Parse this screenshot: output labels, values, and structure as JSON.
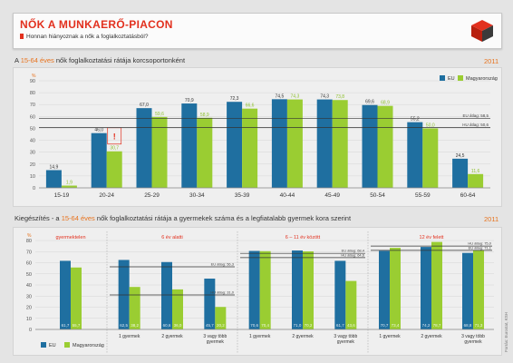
{
  "header": {
    "title": "NŐK A MUNKAERŐ-PIACON",
    "subtitle": "Honnan hiányoznak a nők a foglalkoztatásból?"
  },
  "section1": {
    "title_pre": "A ",
    "title_hl": "15-64 éves",
    "title_post": " nők foglalkoztatási rátája korcsoportonként",
    "year": "2011"
  },
  "section2": {
    "title_pre": "Kiegészítés - a ",
    "title_hl": "15-64 éves",
    "title_post": " nők foglalkoztatási rátája a gyermekek száma és a legfiatalabb gyermek kora szerint",
    "year": "2011"
  },
  "source": "Forrás: Eurostat, KSH",
  "colors": {
    "eu": "#1f6fa0",
    "hu": "#9acd32",
    "accent": "#e2301e",
    "orange": "#e8731e"
  },
  "chart_data": [
    {
      "type": "bar",
      "unit": "%",
      "categories": [
        "15-19",
        "20-24",
        "25-29",
        "30-34",
        "35-39",
        "40-44",
        "45-49",
        "50-54",
        "55-59",
        "60-64"
      ],
      "series": [
        {
          "name": "EU",
          "values": [
            14.9,
            46.0,
            67.0,
            70.9,
            72.3,
            74.5,
            74.3,
            69.6,
            55.2,
            24.5
          ]
        },
        {
          "name": "Magyarország",
          "values": [
            1.9,
            30.7,
            59.6,
            58.9,
            66.6,
            74.3,
            73.8,
            68.9,
            50.0,
            11.6
          ]
        }
      ],
      "ylim": [
        0,
        90
      ],
      "yticks": [
        0,
        10,
        20,
        30,
        40,
        50,
        60,
        70,
        80,
        90
      ],
      "reference_lines": [
        {
          "label": "EU átlag: 58,5",
          "value": 58.5
        },
        {
          "label": "HU átlag: 50,6",
          "value": 50.6
        }
      ],
      "annotations": [
        {
          "category": "20-24",
          "text": "!"
        }
      ],
      "legend": "top-right"
    },
    {
      "type": "bar",
      "unit": "%",
      "ylim": [
        0,
        80
      ],
      "yticks": [
        0,
        10,
        20,
        30,
        40,
        50,
        60,
        70,
        80
      ],
      "legend": "bottom-left",
      "series_names": [
        "EU",
        "Magyarország"
      ],
      "groups": [
        {
          "title": "gyermektelen",
          "categories": [
            ""
          ],
          "eu": [
            61.7
          ],
          "hu": [
            55.7
          ],
          "reference_lines": []
        },
        {
          "title": "6 év alatti",
          "categories": [
            "1 gyermek",
            "2 gyermek",
            "3 vagy több gyermek"
          ],
          "eu": [
            62.5,
            60.6,
            45.7
          ],
          "hu": [
            38.2,
            36.0,
            20.2
          ],
          "reference_lines": [
            {
              "label": "EU átlag: 56,3",
              "value": 56.3
            },
            {
              "label": "HU átlag: 31,0",
              "value": 31.0
            }
          ]
        },
        {
          "title": "6 – 11 év között",
          "categories": [
            "1 gyermek",
            "2 gyermek",
            "3 vagy több gyermek"
          ],
          "eu": [
            70.6,
            71.0,
            61.7
          ],
          "hu": [
            70.4,
            70.2,
            43.6
          ],
          "reference_lines": [
            {
              "label": "EU átlag: 68,4",
              "value": 68.4
            },
            {
              "label": "HU átlag: 64,6",
              "value": 64.6
            }
          ]
        },
        {
          "title": "12 év felett",
          "categories": [
            "1 gyermek",
            "2 gyermek",
            "3 vagy több gyermek"
          ],
          "eu": [
            70.7,
            74.2,
            68.8
          ],
          "hu": [
            73.4,
            78.7,
            71.3
          ],
          "reference_lines": [
            {
              "label": "EU átlag: 71,1",
              "value": 71.1
            },
            {
              "label": "HU átlag: 75,0",
              "value": 75.0
            }
          ]
        }
      ]
    }
  ]
}
